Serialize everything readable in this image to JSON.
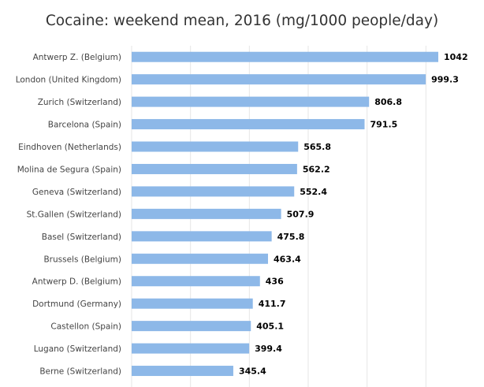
{
  "chart_data": {
    "type": "bar",
    "orientation": "horizontal",
    "title": "Cocaine: weekend mean, 2016 (mg/1000 people/day)",
    "xlabel": "",
    "ylabel": "",
    "xlim": [
      0,
      1200
    ],
    "grid": true,
    "bar_color": "#8db8e8",
    "categories": [
      "Antwerp Z. (Belgium)",
      "London (United Kingdom)",
      "Zurich (Switzerland)",
      "Barcelona (Spain)",
      "Eindhoven (Netherlands)",
      "Molina de Segura (Spain)",
      "Geneva (Switzerland)",
      "St.Gallen (Switzerland)",
      "Basel (Switzerland)",
      "Brussels (Belgium)",
      "Antwerp D. (Belgium)",
      "Dortmund (Germany)",
      "Castellon (Spain)",
      "Lugano (Switzerland)",
      "Berne (Switzerland)"
    ],
    "values": [
      1042,
      999.3,
      806.8,
      791.5,
      565.8,
      562.2,
      552.4,
      507.9,
      475.8,
      463.4,
      436,
      411.7,
      405.1,
      399.4,
      345.4
    ],
    "data_labels": [
      "1042",
      "999.3",
      "806.8",
      "791.5",
      "565.8",
      "562.2",
      "552.4",
      "507.9",
      "475.8",
      "463.4",
      "436",
      "411.7",
      "405.1",
      "399.4",
      "345.4"
    ]
  }
}
